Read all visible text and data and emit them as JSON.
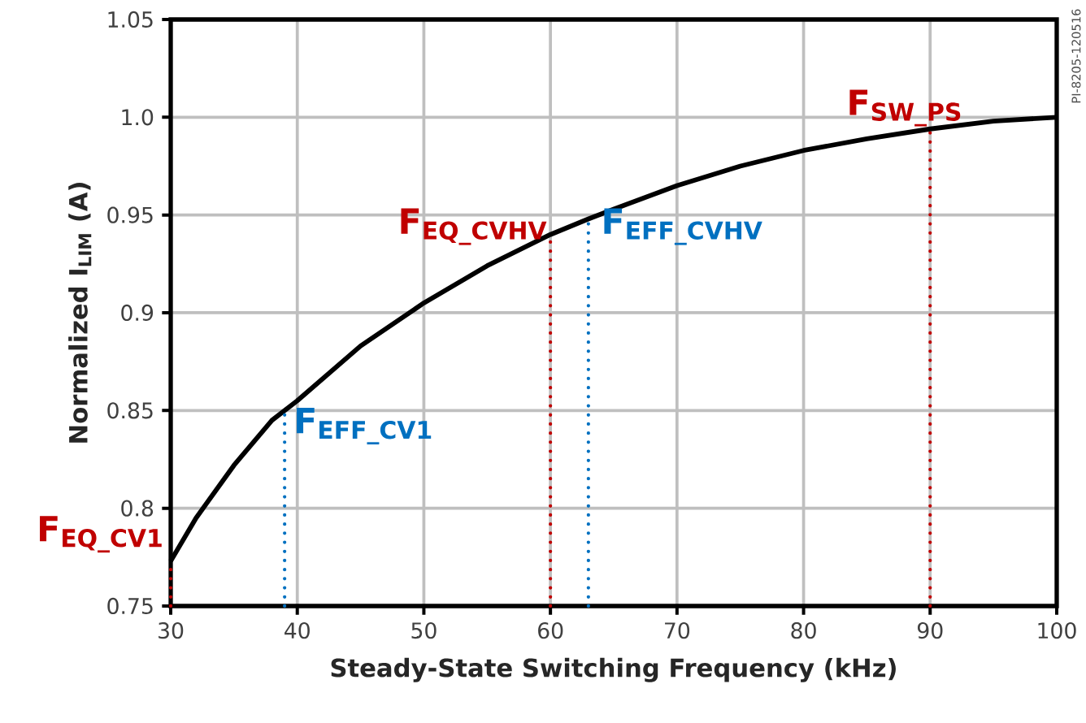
{
  "chart_data": {
    "type": "line",
    "xlabel": "Steady-State Switching Frequency (kHz)",
    "ylabel": "Normalized I$_{LIM}$ (A)",
    "x": [
      30,
      32,
      35,
      38,
      40,
      45,
      50,
      55,
      60,
      63,
      65,
      70,
      75,
      80,
      85,
      90,
      95,
      100
    ],
    "series": [
      {
        "color": "#000000",
        "values": [
          0.773,
          0.795,
          0.822,
          0.845,
          0.855,
          0.883,
          0.905,
          0.924,
          0.94,
          0.948,
          0.953,
          0.965,
          0.975,
          0.983,
          0.989,
          0.994,
          0.998,
          1.0
        ]
      }
    ],
    "xlim": [
      30,
      100
    ],
    "ylim": [
      0.75,
      1.05
    ],
    "xticks": [
      30,
      40,
      50,
      60,
      70,
      80,
      90,
      100
    ],
    "yticks": [
      0.75,
      0.8,
      0.85,
      0.9,
      0.95,
      {
        "value": 1.0,
        "label": "1.0"
      },
      1.05
    ],
    "grid": true,
    "marker": "none",
    "line_style": "solid",
    "ref_lines": [
      {
        "axis": "x",
        "value": 30,
        "label": "F$_{EQ_CV1}$",
        "color": "#c00000",
        "line_style": "dotted"
      },
      {
        "axis": "x",
        "value": 39,
        "label": "F$_{EFF_CV1}$",
        "color": "#0070c0",
        "line_style": "dotted"
      },
      {
        "axis": "x",
        "value": 60,
        "label": "F$_{EQ_CVHV}$",
        "color": "#c00000",
        "line_style": "dotted"
      },
      {
        "axis": "x",
        "value": 63,
        "label": "F$_{EFF_CVHV}$",
        "color": "#0070c0",
        "line_style": "dotted"
      },
      {
        "axis": "x",
        "value": 90,
        "label": "F$_{SW_PS}$",
        "color": "#c00000",
        "line_style": "dotted"
      }
    ],
    "annotations": [
      "PI-8205-120516"
    ]
  }
}
